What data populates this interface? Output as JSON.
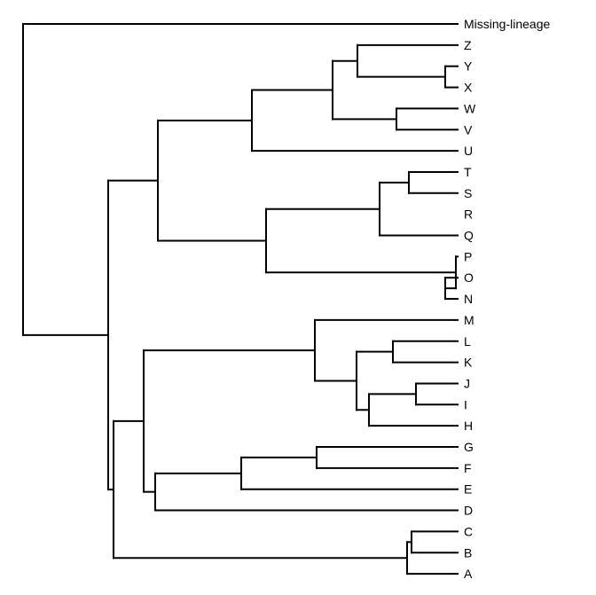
{
  "tree": {
    "type": "dendrogram",
    "orientation": "left-to-right",
    "line_color": "#000000",
    "leaves": [
      "Missing-lineage",
      "Z",
      "Y",
      "X",
      "W",
      "V",
      "U",
      "T",
      "S",
      "R",
      "Q",
      "P",
      "O",
      "N",
      "M",
      "L",
      "K",
      "J",
      "I",
      "H",
      "G",
      "F",
      "E",
      "D",
      "C",
      "B",
      "A"
    ],
    "newick": "(Missing-lineage,((((Z,(Y,X)),(W,V)),U),(((T,S),R),Q),(P,(O,N))),(((M,((L,K),((J,I),H))),((G,F),E),D),((C,B),A)));"
  }
}
